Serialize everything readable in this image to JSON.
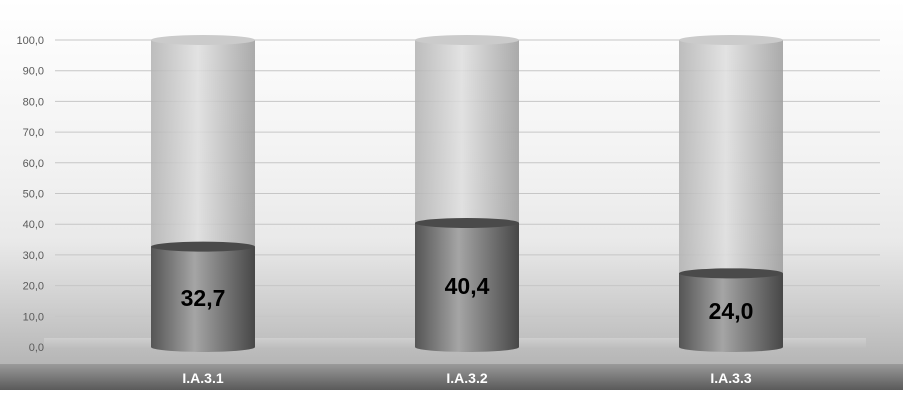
{
  "chart_data": {
    "type": "bar",
    "title": "",
    "xlabel": "",
    "ylabel": "",
    "categories": [
      "I.A.3.1",
      "I.A.3.2",
      "I.A.3.3"
    ],
    "series": [
      {
        "values": [
          32.7,
          40.4,
          24.0
        ]
      }
    ],
    "data_labels": [
      "32,7",
      "40,4",
      "24,0"
    ],
    "ylim": [
      0,
      100
    ],
    "yticks": [
      0,
      10,
      20,
      30,
      40,
      50,
      60,
      70,
      80,
      90,
      100
    ],
    "ytick_labels": [
      "0,0",
      "10,0",
      "20,0",
      "30,0",
      "40,0",
      "50,0",
      "60,0",
      "70,0",
      "80,0",
      "90,0",
      "100,0"
    ],
    "grid": true,
    "legend": "none",
    "bar_style": "3d-cylinder",
    "colors": {
      "bar_fill": "#6e6e6e",
      "bar_empty": "#c8c8c8",
      "label_text": "#000000",
      "axis_text": "#5a5a5a",
      "category_text": "#ffffff"
    }
  }
}
